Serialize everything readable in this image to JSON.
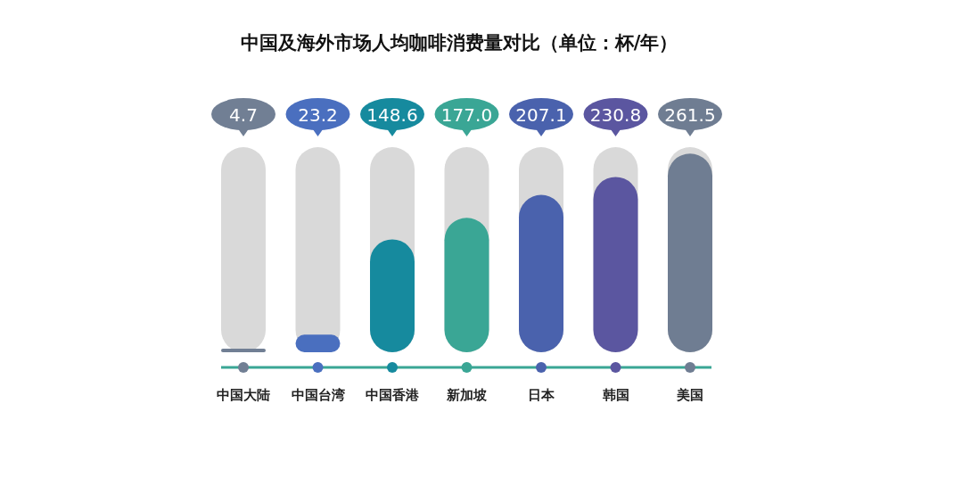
{
  "chart_data": {
    "type": "bar",
    "title": "中国及海外市场人均咖啡消费量对比（单位：杯/年）",
    "categories": [
      "中国大陆",
      "中国台湾",
      "中国香港",
      "新加坡",
      "日本",
      "韩国",
      "美国"
    ],
    "values": [
      4.7,
      23.2,
      148.6,
      177.0,
      207.1,
      230.8,
      261.5
    ],
    "value_labels": [
      "4.7",
      "23.2",
      "148.6",
      "177.0",
      "207.1",
      "230.8",
      "261.5"
    ],
    "colors": [
      "#717f94",
      "#4a6fbf",
      "#168a9e",
      "#3aa695",
      "#4a62ad",
      "#5b56a0",
      "#6f7d92"
    ],
    "ylim": [
      0,
      270
    ]
  }
}
